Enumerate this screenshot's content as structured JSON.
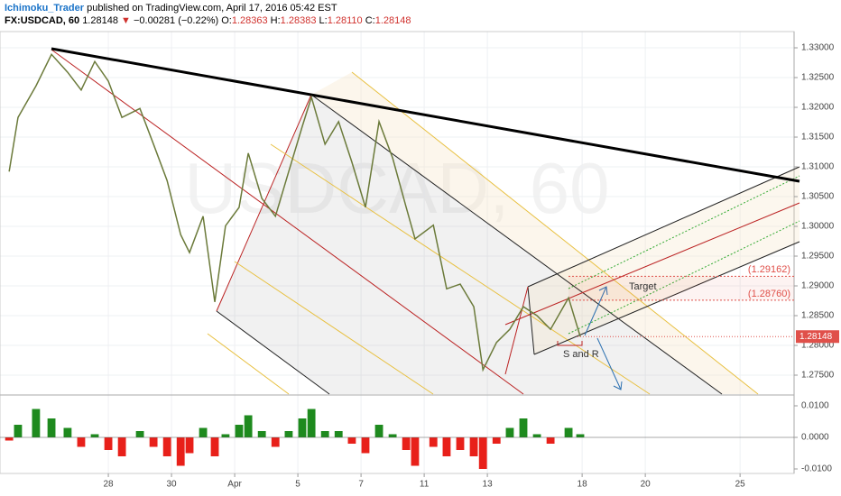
{
  "header": {
    "author": "Ichimoku_Trader",
    "published": "published on TradingView.com, April 17, 2016 05:42 EST",
    "symbol": "FX:USDCAD, 60",
    "last": "1.28148",
    "arrow": "▼",
    "change": "−0.00281 (−0.22%)",
    "open_label": "O:",
    "open": "1.28363",
    "high_label": "H:",
    "high": "1.28383",
    "low_label": "L:",
    "low": "1.28110",
    "close_label": "C:",
    "close": "1.28148"
  },
  "chart_data": [
    {
      "type": "line",
      "watermark": "USDCAD, 60",
      "color": "#777777",
      "grid": true,
      "x": [
        -3.14,
        -2.86,
        -2.29,
        -1.8,
        -1.29,
        -0.86,
        -0.43,
        0,
        0.43,
        1,
        1.43,
        1.86,
        2.29,
        2.57,
        3,
        3.37,
        3.71,
        4.14,
        4.43,
        4.86,
        5.29,
        5.71,
        6.14,
        6.43,
        6.86,
        7.29,
        7.71,
        8.14,
        8.57,
        9,
        9.43,
        9.71,
        10.29,
        10.71,
        11.14,
        11.57,
        11.86,
        12.29,
        12.71,
        13.14,
        13.57,
        14,
        14.57,
        14.94
      ],
      "series": [
        {
          "name": "USDCAD",
          "color": "#6b7a3a",
          "values": [
            1.3092,
            1.3183,
            1.3236,
            1.3289,
            1.3259,
            1.3229,
            1.3277,
            1.3244,
            1.3183,
            1.3198,
            1.3138,
            1.3077,
            1.2986,
            1.2956,
            1.3017,
            1.2873,
            1.3001,
            1.3032,
            1.3123,
            1.3047,
            1.3017,
            1.3092,
            1.3168,
            1.3217,
            1.3138,
            1.3176,
            1.3108,
            1.3032,
            1.3176,
            1.3115,
            1.3032,
            1.2979,
            1.3002,
            1.2895,
            1.2903,
            1.2865,
            1.2759,
            1.2805,
            1.2827,
            1.2865,
            1.285,
            1.2827,
            1.288,
            1.2815
          ]
        }
      ],
      "xlim": [
        -3.43,
        21.71
      ],
      "xticks": [
        {
          "value": 0,
          "label": "28"
        },
        {
          "value": 2,
          "label": "30"
        },
        {
          "value": 4,
          "label": "Apr"
        },
        {
          "value": 6,
          "label": "5"
        },
        {
          "value": 8,
          "label": "7"
        },
        {
          "value": 10,
          "label": "11"
        },
        {
          "value": 12,
          "label": "13"
        },
        {
          "value": 15,
          "label": "18"
        },
        {
          "value": 17,
          "label": "20"
        },
        {
          "value": 20,
          "label": "25"
        }
      ],
      "ylim": [
        1.27182,
        1.33273
      ],
      "yticks": [
        {
          "value": 1.275,
          "label": "1.27500"
        },
        {
          "value": 1.28,
          "label": "1.28000"
        },
        {
          "value": 1.285,
          "label": "1.28500"
        },
        {
          "value": 1.29,
          "label": "1.29000"
        },
        {
          "value": 1.295,
          "label": "1.29500"
        },
        {
          "value": 1.3,
          "label": "1.30000"
        },
        {
          "value": 1.305,
          "label": "1.30500"
        },
        {
          "value": 1.31,
          "label": "1.31000"
        },
        {
          "value": 1.315,
          "label": "1.31500"
        },
        {
          "value": 1.32,
          "label": "1.32000"
        },
        {
          "value": 1.325,
          "label": "1.32500"
        },
        {
          "value": 1.33,
          "label": "1.33000"
        }
      ],
      "last_price": {
        "value": 1.28148,
        "label": "1.28148"
      },
      "last_price_color": "#e0504a",
      "levels": [
        {
          "value": 1.29162,
          "label": "(1.29162)"
        },
        {
          "value": 1.2876,
          "label": "(1.28760)"
        }
      ],
      "annotations": [
        "Target",
        "S and R"
      ]
    },
    {
      "type": "histogram",
      "positive_color": "#1e8a1e",
      "negative_color": "#e8201a",
      "x": [
        -3.14,
        -2.86,
        -2.29,
        -1.8,
        -1.29,
        -0.86,
        -0.43,
        0,
        0.43,
        1,
        1.43,
        1.86,
        2.29,
        2.57,
        3,
        3.37,
        3.71,
        4.14,
        4.43,
        4.86,
        5.29,
        5.71,
        6.14,
        6.43,
        6.86,
        7.29,
        7.71,
        8.14,
        8.57,
        9,
        9.43,
        9.71,
        10.29,
        10.71,
        11.14,
        11.57,
        11.86,
        12.29,
        12.71,
        13.14,
        13.57,
        14,
        14.57,
        14.94
      ],
      "values": [
        -0.001,
        0.004,
        0.009,
        0.006,
        0.003,
        -0.003,
        0.001,
        -0.004,
        -0.006,
        0.002,
        -0.003,
        -0.006,
        -0.009,
        -0.005,
        0.003,
        -0.006,
        0.001,
        0.004,
        0.007,
        0.002,
        -0.003,
        0.002,
        0.006,
        0.009,
        0.002,
        0.002,
        -0.002,
        -0.005,
        0.004,
        0.001,
        -0.004,
        -0.009,
        -0.003,
        -0.006,
        -0.004,
        -0.006,
        -0.01,
        -0.002,
        0.003,
        0.006,
        0.001,
        -0.002,
        0.003,
        0.001
      ],
      "ylim": [
        -0.01143,
        0.01286
      ],
      "yticks": [
        {
          "value": 0.01,
          "label": "0.0100"
        },
        {
          "value": 0,
          "label": "0.0000"
        },
        {
          "value": -0.01,
          "label": "-0.0100"
        }
      ]
    }
  ]
}
